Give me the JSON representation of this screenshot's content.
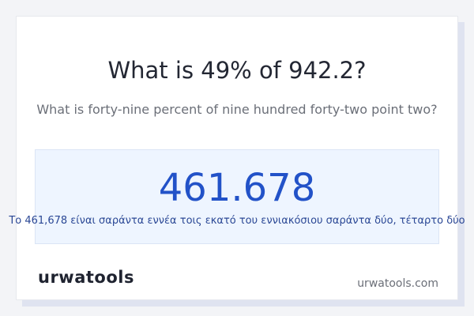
{
  "header": {
    "title": "What is 49% of 942.2?",
    "subtitle": "What is forty-nine percent of nine hundred forty-two point two?"
  },
  "result": {
    "value": "461.678",
    "words": "Το 461,678 είναι σαράντα εννέα τοις εκατό του εννιακόσιου σαράντα δύο, τέταρτο δύο"
  },
  "footer": {
    "logo": "urwatools",
    "site": "urwatools.com"
  }
}
